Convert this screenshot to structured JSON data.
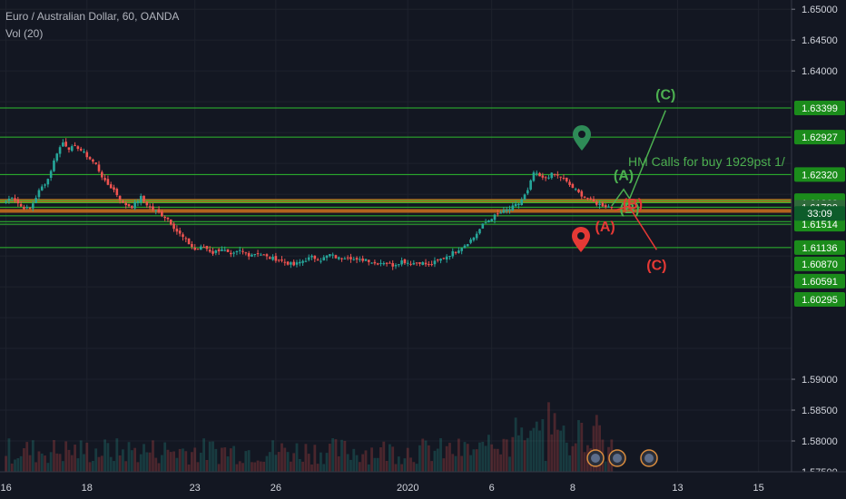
{
  "header": {
    "title": "Euro / Australian Dollar, 60, OANDA",
    "volume_label": "Vol (20)"
  },
  "colors": {
    "background": "#131722",
    "grid": "#1e222d",
    "candle_up": "#26a69a",
    "candle_down": "#ef5350",
    "green_line": "#2ebd2e",
    "orange_zone": "#c26b1e",
    "bull_wave": "#4caf50",
    "bear_wave": "#e53935",
    "tag_green": "#1b8c1b",
    "tag_price": "#2f6b3a"
  },
  "chart_data": {
    "type": "candlestick",
    "title": "Euro / Australian Dollar, 60, OANDA",
    "ylim": [
      1.575,
      1.6515
    ],
    "y_ticks": [
      1.65,
      1.645,
      1.64,
      1.59,
      1.585,
      1.58,
      1.575
    ],
    "y_tick_labels": [
      "1.65000",
      "1.64500",
      "1.64000",
      "1.59000",
      "1.58500",
      "1.58000",
      "1.57500"
    ],
    "x_tick_labels": [
      "16",
      "18",
      "23",
      "26",
      "2020",
      "6",
      "8",
      "13",
      "15"
    ],
    "x_tick_index": [
      0,
      27,
      63,
      90,
      134,
      162,
      189,
      224,
      251
    ],
    "x_range": [
      -2,
      262
    ],
    "support_resistance_lines": [
      1.63399,
      1.62927,
      1.6232,
      1.61896,
      1.61862,
      1.6179,
      1.6165,
      1.61557,
      1.61514,
      1.61136
    ],
    "price_tags": [
      {
        "label": "1.63399",
        "value": 1.63399
      },
      {
        "label": "1.62927",
        "value": 1.62927
      },
      {
        "label": "1.62320",
        "value": 1.6232
      },
      {
        "label": "1.61896",
        "value": 1.61896
      },
      {
        "label": "1.61862",
        "value": 1.61862
      },
      {
        "label": "1.61790",
        "value": 1.6179,
        "kind": "current"
      },
      {
        "label": "1.61557",
        "value": 1.61557
      },
      {
        "label": "1.61514",
        "value": 1.61514
      },
      {
        "label": "1.61136",
        "value": 1.61136
      },
      {
        "label": "1.60870",
        "value": 1.6087
      },
      {
        "label": "1.60591",
        "value": 1.60591
      },
      {
        "label": "1.60295",
        "value": 1.60295
      }
    ],
    "countdown": {
      "label": "33:09",
      "value": 1.6169
    },
    "resistance_zones": [
      {
        "low": 1.6186,
        "high": 1.61925
      },
      {
        "low": 1.617,
        "high": 1.6176
      }
    ],
    "close_path": [
      [
        0,
        1.6188
      ],
      [
        2,
        1.6197
      ],
      [
        5,
        1.618
      ],
      [
        8,
        1.6176
      ],
      [
        11,
        1.6205
      ],
      [
        14,
        1.6225
      ],
      [
        17,
        1.6268
      ],
      [
        19,
        1.6284
      ],
      [
        21,
        1.6275
      ],
      [
        24,
        1.6276
      ],
      [
        27,
        1.6262
      ],
      [
        30,
        1.6248
      ],
      [
        33,
        1.622
      ],
      [
        36,
        1.6207
      ],
      [
        39,
        1.6185
      ],
      [
        42,
        1.618
      ],
      [
        45,
        1.6195
      ],
      [
        48,
        1.6178
      ],
      [
        51,
        1.617
      ],
      [
        54,
        1.616
      ],
      [
        57,
        1.614
      ],
      [
        60,
        1.6125
      ],
      [
        63,
        1.611
      ],
      [
        66,
        1.6115
      ],
      [
        69,
        1.6105
      ],
      [
        72,
        1.6112
      ],
      [
        75,
        1.61
      ],
      [
        78,
        1.6108
      ],
      [
        81,
        1.6102
      ],
      [
        84,
        1.6105
      ],
      [
        87,
        1.6098
      ],
      [
        90,
        1.6095
      ],
      [
        93,
        1.609
      ],
      [
        96,
        1.6085
      ],
      [
        99,
        1.6092
      ],
      [
        102,
        1.6098
      ],
      [
        105,
        1.6094
      ],
      [
        108,
        1.6102
      ],
      [
        111,
        1.6096
      ],
      [
        114,
        1.61
      ],
      [
        117,
        1.6092
      ],
      [
        120,
        1.6095
      ],
      [
        123,
        1.6088
      ],
      [
        126,
        1.609
      ],
      [
        129,
        1.6085
      ],
      [
        132,
        1.6092
      ],
      [
        135,
        1.6088
      ],
      [
        138,
        1.609
      ],
      [
        141,
        1.6085
      ],
      [
        144,
        1.6092
      ],
      [
        147,
        1.61
      ],
      [
        150,
        1.6108
      ],
      [
        153,
        1.6118
      ],
      [
        156,
        1.613
      ],
      [
        159,
        1.615
      ],
      [
        162,
        1.6162
      ],
      [
        165,
        1.617
      ],
      [
        168,
        1.6176
      ],
      [
        171,
        1.6185
      ],
      [
        174,
        1.6205
      ],
      [
        176,
        1.6235
      ],
      [
        179,
        1.6225
      ],
      [
        182,
        1.6232
      ],
      [
        185,
        1.6228
      ],
      [
        188,
        1.6215
      ],
      [
        191,
        1.6202
      ],
      [
        194,
        1.6193
      ],
      [
        197,
        1.6185
      ],
      [
        200,
        1.6181
      ],
      [
        202,
        1.6179
      ]
    ],
    "volume_profile": "low",
    "wave_count_bull": {
      "points": [
        [
          202,
          1.6181
        ],
        [
          206,
          1.6208
        ],
        [
          208,
          1.6193
        ],
        [
          220,
          1.6336
        ]
      ],
      "labels": [
        "(A)",
        "(B)",
        "(C)"
      ]
    },
    "wave_count_bear": {
      "points": [
        [
          203,
          1.6174
        ],
        [
          208,
          1.6181
        ],
        [
          209,
          1.6171
        ],
        [
          217,
          1.611
        ]
      ],
      "labels": [
        "(A)",
        "(B)",
        "(C)"
      ]
    },
    "annotation": "HM Calls for buy 1929pst 1/"
  },
  "time_icons": [
    "event-icon-1",
    "event-icon-2",
    "event-icon-3"
  ]
}
